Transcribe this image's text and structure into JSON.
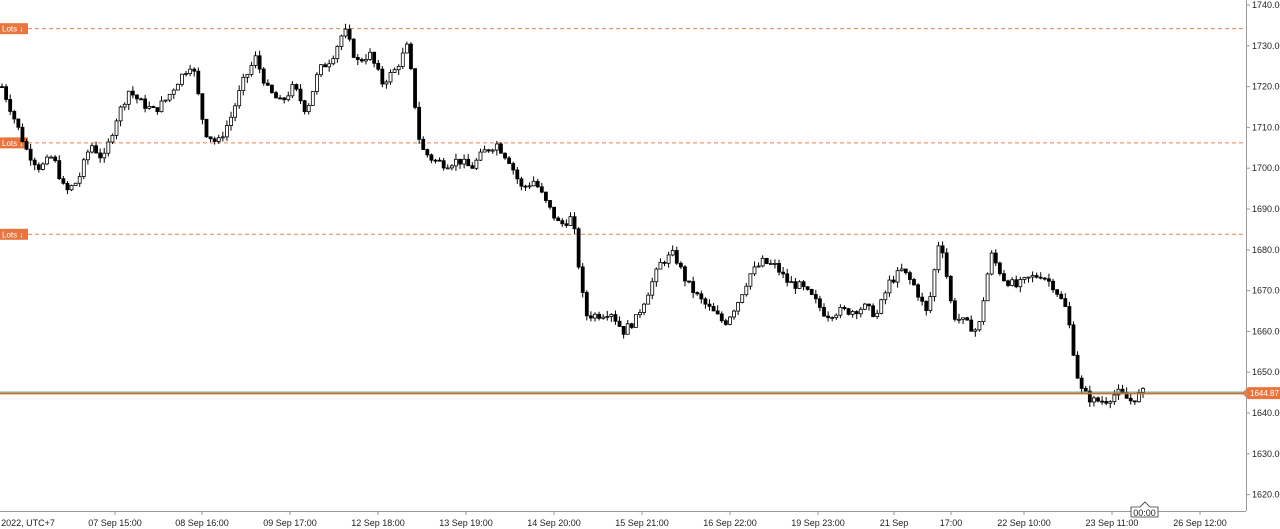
{
  "chart_data": {
    "type": "candlestick",
    "title": "",
    "colors": {
      "candle": "#000000",
      "level_line": "#e8825a",
      "price_line": "#e0602a",
      "bid_line": "#3aa57a",
      "badge": "#e8743e",
      "grid_axis": "#9a9a9a"
    },
    "ylim": [
      1617,
      1743
    ],
    "y_ticks": [
      "1740.00",
      "1730.00",
      "1720.00",
      "1710.00",
      "1700.00",
      "1690.00",
      "1680.00",
      "1670.00",
      "1660.00",
      "1650.00",
      "1640.00",
      "1630.00",
      "1620.00"
    ],
    "x_labels": [
      "2022, UTC+7",
      "07 Sep 15:00",
      "08 Sep 16:00",
      "09 Sep 17:00",
      "12 Sep 18:00",
      "13 Sep 19:00",
      "14 Sep 20:00",
      "15 Sep 21:00",
      "16 Sep 22:00",
      "19 Sep 23:00",
      "21 Sep",
      "17:00",
      "22 Sep 10:00",
      "23 Sep 11:00",
      "26 Sep 12:00"
    ],
    "levels": [
      {
        "label": "Lots ↓",
        "price": 1734.2
      },
      {
        "label": "Lots ↓",
        "price": 1706.2
      },
      {
        "label": "Lots ↓",
        "price": 1683.8
      }
    ],
    "current_price": {
      "label": "1644.87",
      "value": 1644.87
    },
    "time_marker": {
      "label": "00:00"
    },
    "price_path": [
      1720,
      1712,
      1704,
      1700,
      1703,
      1694,
      1697,
      1706,
      1702,
      1712,
      1719,
      1716,
      1714,
      1717,
      1722,
      1726,
      1709,
      1706,
      1712,
      1721,
      1727,
      1719,
      1716,
      1720,
      1714,
      1724,
      1727,
      1734,
      1726,
      1728,
      1721,
      1724,
      1730,
      1705,
      1702,
      1701,
      1702,
      1700,
      1704,
      1706,
      1702,
      1695,
      1697,
      1691,
      1686,
      1688,
      1664,
      1664,
      1665,
      1660,
      1663,
      1670,
      1677,
      1679,
      1672,
      1668,
      1665,
      1662,
      1667,
      1674,
      1677,
      1676,
      1672,
      1671,
      1668,
      1664,
      1665,
      1665,
      1666,
      1664,
      1672,
      1675,
      1671,
      1664,
      1684,
      1664,
      1662,
      1660,
      1679,
      1673,
      1671,
      1673,
      1674,
      1671,
      1665,
      1646,
      1643,
      1643,
      1645,
      1643,
      1645
    ],
    "candle_count": 280
  }
}
